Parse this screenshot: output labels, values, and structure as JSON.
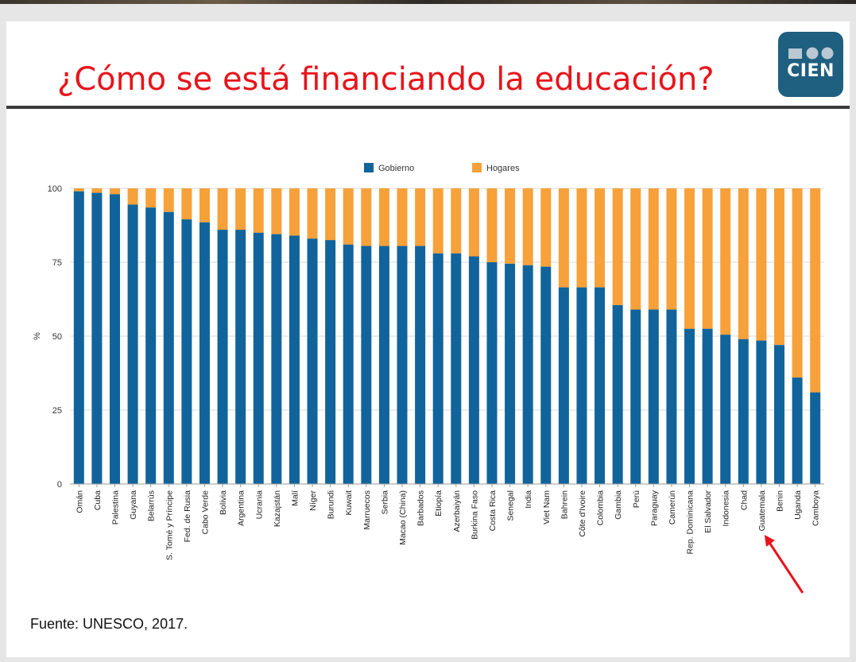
{
  "slide": {
    "title": "¿Cómo se está financiando la educación?",
    "logo_text": "CIEN",
    "source": "Fuente: UNESCO, 2017.",
    "highlight_label": "Guatemala"
  },
  "colors": {
    "title": "#e8141b",
    "gobierno": "#11649b",
    "hogares": "#f7a13a",
    "logo_bg": "#1f5f80",
    "arrow": "#e8141b"
  },
  "chart_data": {
    "type": "bar",
    "stacked": true,
    "title": "",
    "xlabel": "",
    "ylabel": "%",
    "ylim": [
      0,
      100
    ],
    "yticks": [
      0,
      25,
      50,
      75,
      100
    ],
    "legend": [
      "Gobierno",
      "Hogares"
    ],
    "legend_position": "top",
    "categories": [
      "Omán",
      "Cuba",
      "Palestina",
      "Guyana",
      "Belarrús",
      "S. Tomé y Príncipe",
      "Fed. de Rusia",
      "Cabo Verde",
      "Bolivia",
      "Argentina",
      "Ucrania",
      "Kazajstán",
      "Malí",
      "Níger",
      "Burundi",
      "Kuwait",
      "Marruecos",
      "Serbia",
      "Macao (China)",
      "Barbados",
      "Etiopía",
      "Azerbaiyán",
      "Burkina Faso",
      "Costa Rica",
      "Senegal",
      "India",
      "Viet Nam",
      "Bahrein",
      "Côte d'Ivoire",
      "Colombia",
      "Gambia",
      "Perú",
      "Paraguay",
      "Camerún",
      "Rep. Dominicana",
      "El Salvador",
      "Indonesia",
      "Chad",
      "Guatemala",
      "Benin",
      "Uganda",
      "Camboya"
    ],
    "series": [
      {
        "name": "Gobierno",
        "values": [
          99,
          98.5,
          98,
          94.5,
          93.5,
          92,
          89.5,
          88.5,
          86,
          86,
          85,
          84.5,
          84,
          83,
          82.5,
          81,
          80.5,
          80.5,
          80.5,
          80.5,
          78,
          78,
          77,
          75,
          74.5,
          74,
          73.5,
          66.5,
          66.5,
          66.5,
          60.5,
          59,
          59,
          59,
          52.5,
          52.5,
          50.5,
          49,
          48.5,
          47,
          36,
          31
        ]
      },
      {
        "name": "Hogares",
        "values": [
          1,
          1.5,
          2,
          5.5,
          6.5,
          8,
          10.5,
          11.5,
          14,
          14,
          15,
          15.5,
          16,
          17,
          17.5,
          19,
          19.5,
          19.5,
          19.5,
          19.5,
          22,
          22,
          23,
          25,
          25.5,
          26,
          26.5,
          33.5,
          33.5,
          33.5,
          39.5,
          41,
          41,
          41,
          47.5,
          47.5,
          49.5,
          51,
          51.5,
          53,
          64,
          69
        ]
      }
    ]
  }
}
